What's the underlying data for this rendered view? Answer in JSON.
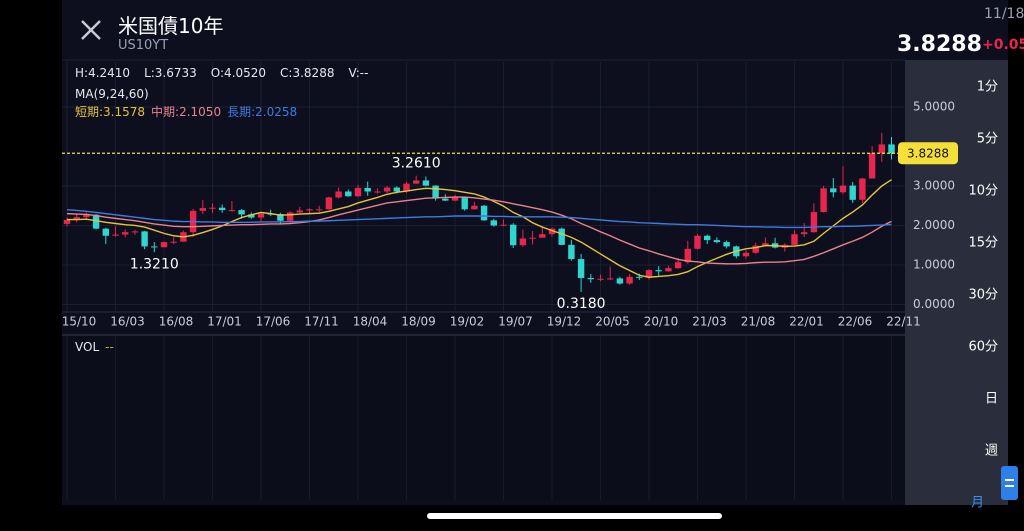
{
  "header": {
    "title": "米国債10年",
    "symbol": "US10YT",
    "date": "11/18",
    "price": "3.8288",
    "change": "+0.05"
  },
  "ohlc_bar": [
    "H:4.2410",
    "L:3.6733",
    "O:4.0520",
    "C:3.8288",
    "V:--"
  ],
  "ma_legend": {
    "title": "MA(9,24,60)",
    "items": [
      "短期:3.1578",
      "中期:2.1050",
      "長期:2.0258"
    ]
  },
  "vol_panel": {
    "label": "VOL",
    "value": "--"
  },
  "timeframes": {
    "items": [
      "1分",
      "5分",
      "10分",
      "15分",
      "30分",
      "60分",
      "日",
      "週",
      "月"
    ],
    "selected": "月"
  },
  "chart_data": {
    "type": "candlestick",
    "categories": [
      "15/10",
      null,
      null,
      null,
      null,
      "16/03",
      null,
      null,
      null,
      null,
      "16/08",
      null,
      null,
      null,
      null,
      "17/01",
      null,
      null,
      null,
      null,
      "17/06",
      null,
      null,
      null,
      null,
      "17/11",
      null,
      null,
      null,
      null,
      "18/04",
      null,
      null,
      null,
      null,
      "18/09",
      null,
      null,
      null,
      null,
      "19/02",
      null,
      null,
      null,
      null,
      "19/07",
      null,
      null,
      null,
      null,
      "19/12",
      null,
      null,
      null,
      null,
      "20/05",
      null,
      null,
      null,
      null,
      "20/10",
      null,
      null,
      null,
      null,
      "21/03",
      null,
      null,
      null,
      null,
      "21/08",
      null,
      null,
      null,
      null,
      "22/01",
      null,
      null,
      null,
      null,
      "22/06",
      null,
      null,
      null,
      null,
      "22/11"
    ],
    "open": [
      2.04,
      2.14,
      2.21,
      2.27,
      1.92,
      1.74,
      1.77,
      1.83,
      1.85,
      1.47,
      1.45,
      1.58,
      1.59,
      1.83,
      2.37,
      2.44,
      2.45,
      2.39,
      2.39,
      2.28,
      2.2,
      2.3,
      2.29,
      2.12,
      2.33,
      2.38,
      2.41,
      2.41,
      2.71,
      2.86,
      2.74,
      2.95,
      2.86,
      2.86,
      2.96,
      2.86,
      3.06,
      3.14,
      3.01,
      2.68,
      2.63,
      2.72,
      2.41,
      2.5,
      2.13,
      2.0,
      2.02,
      1.5,
      1.67,
      1.69,
      1.78,
      1.92,
      1.51,
      1.15,
      0.67,
      0.64,
      0.65,
      0.66,
      0.53,
      0.7,
      0.68,
      0.87,
      0.84,
      0.92,
      1.07,
      1.41,
      1.74,
      1.63,
      1.58,
      1.47,
      1.22,
      1.31,
      1.49,
      1.55,
      1.44,
      1.51,
      1.78,
      1.83,
      2.34,
      2.94,
      2.84,
      3.01,
      2.65,
      3.19,
      3.83,
      4.052
    ],
    "high": [
      2.2,
      2.29,
      2.33,
      2.29,
      1.94,
      1.98,
      1.9,
      1.89,
      1.86,
      1.58,
      1.59,
      1.7,
      1.87,
      2.42,
      2.64,
      2.56,
      2.53,
      2.62,
      2.42,
      2.33,
      2.32,
      2.4,
      2.32,
      2.36,
      2.47,
      2.43,
      2.5,
      2.73,
      2.96,
      2.91,
      3.03,
      3.11,
      2.94,
      3.0,
      2.99,
      3.1,
      3.261,
      3.24,
      3.02,
      2.79,
      2.78,
      2.73,
      2.6,
      2.52,
      2.17,
      2.15,
      2.06,
      1.9,
      1.86,
      1.97,
      1.95,
      1.95,
      1.64,
      1.28,
      0.77,
      0.76,
      0.96,
      0.7,
      0.77,
      0.78,
      0.89,
      0.97,
      0.98,
      1.18,
      1.61,
      1.78,
      1.77,
      1.7,
      1.62,
      1.49,
      1.38,
      1.56,
      1.7,
      1.69,
      1.55,
      1.88,
      2.06,
      2.56,
      3.0,
      3.2,
      3.5,
      3.1,
      3.2,
      4.01,
      4.34,
      4.241
    ],
    "low": [
      1.98,
      2.08,
      2.16,
      1.9,
      1.53,
      1.72,
      1.7,
      1.76,
      1.4,
      1.321,
      1.44,
      1.53,
      1.59,
      1.71,
      2.29,
      2.32,
      2.32,
      2.35,
      2.17,
      2.17,
      2.1,
      2.24,
      2.03,
      2.04,
      2.31,
      2.31,
      2.33,
      2.4,
      2.68,
      2.73,
      2.72,
      2.75,
      2.81,
      2.82,
      2.81,
      2.82,
      3.05,
      2.99,
      2.63,
      2.62,
      2.61,
      2.37,
      2.4,
      2.12,
      1.97,
      1.98,
      1.43,
      1.46,
      1.52,
      1.71,
      1.72,
      1.5,
      1.11,
      0.318,
      0.55,
      0.59,
      0.62,
      0.5,
      0.5,
      0.62,
      0.63,
      0.73,
      0.83,
      0.9,
      1.03,
      1.39,
      1.53,
      1.55,
      1.42,
      1.17,
      1.16,
      1.28,
      1.48,
      1.42,
      1.34,
      1.5,
      1.71,
      1.82,
      2.33,
      2.71,
      2.79,
      2.57,
      2.57,
      3.19,
      3.61,
      3.6733
    ],
    "close": [
      2.14,
      2.21,
      2.27,
      1.92,
      1.74,
      1.77,
      1.83,
      1.85,
      1.47,
      1.45,
      1.58,
      1.59,
      1.83,
      2.37,
      2.44,
      2.45,
      2.39,
      2.39,
      2.28,
      2.2,
      2.3,
      2.29,
      2.12,
      2.33,
      2.38,
      2.41,
      2.41,
      2.71,
      2.86,
      2.74,
      2.95,
      2.86,
      2.86,
      2.96,
      2.86,
      3.06,
      3.14,
      3.01,
      2.68,
      2.63,
      2.72,
      2.41,
      2.5,
      2.13,
      2.0,
      2.02,
      1.5,
      1.67,
      1.69,
      1.78,
      1.92,
      1.51,
      1.15,
      0.67,
      0.64,
      0.65,
      0.66,
      0.53,
      0.7,
      0.68,
      0.87,
      0.84,
      0.92,
      1.07,
      1.41,
      1.74,
      1.63,
      1.58,
      1.47,
      1.22,
      1.31,
      1.49,
      1.55,
      1.44,
      1.51,
      1.78,
      1.83,
      2.34,
      2.94,
      2.84,
      3.01,
      2.65,
      3.19,
      3.83,
      4.052,
      3.8288
    ],
    "up_color": "#e8254d",
    "down_color": "#2fd6cf",
    "lines": [
      {
        "color": "#e5c33a",
        "values": [
          2.15,
          2.15,
          2.16,
          2.12,
          2.08,
          2.05,
          2.02,
          2.0,
          1.96,
          1.88,
          1.8,
          1.74,
          1.71,
          1.75,
          1.82,
          1.9,
          1.99,
          2.1,
          2.2,
          2.27,
          2.33,
          2.3,
          2.26,
          2.27,
          2.29,
          2.3,
          2.31,
          2.36,
          2.42,
          2.48,
          2.57,
          2.64,
          2.71,
          2.79,
          2.84,
          2.87,
          2.91,
          2.94,
          2.93,
          2.91,
          2.88,
          2.84,
          2.8,
          2.72,
          2.61,
          2.49,
          2.33,
          2.22,
          2.07,
          1.96,
          1.87,
          1.79,
          1.7,
          1.58,
          1.43,
          1.28,
          1.13,
          0.98,
          0.86,
          0.74,
          0.69,
          0.71,
          0.73,
          0.76,
          0.83,
          0.96,
          1.07,
          1.17,
          1.27,
          1.35,
          1.41,
          1.44,
          1.49,
          1.49,
          1.47,
          1.48,
          1.51,
          1.6,
          1.8,
          1.99,
          2.18,
          2.34,
          2.52,
          2.77,
          3.0,
          3.1578
        ]
      },
      {
        "color": "#e8828c",
        "values": [
          2.3,
          2.29,
          2.28,
          2.25,
          2.21,
          2.18,
          2.15,
          2.12,
          2.08,
          2.04,
          2.01,
          1.98,
          1.97,
          1.97,
          1.98,
          1.99,
          2.0,
          2.01,
          2.02,
          2.02,
          2.03,
          2.04,
          2.04,
          2.05,
          2.07,
          2.1,
          2.14,
          2.2,
          2.27,
          2.33,
          2.39,
          2.45,
          2.51,
          2.57,
          2.6,
          2.63,
          2.66,
          2.69,
          2.7,
          2.71,
          2.72,
          2.72,
          2.7,
          2.67,
          2.64,
          2.6,
          2.55,
          2.5,
          2.45,
          2.4,
          2.34,
          2.26,
          2.17,
          2.05,
          1.95,
          1.84,
          1.74,
          1.63,
          1.53,
          1.43,
          1.36,
          1.28,
          1.21,
          1.14,
          1.1,
          1.08,
          1.05,
          1.04,
          1.03,
          1.03,
          1.04,
          1.06,
          1.07,
          1.07,
          1.08,
          1.11,
          1.14,
          1.22,
          1.31,
          1.41,
          1.51,
          1.6,
          1.7,
          1.83,
          1.98,
          2.105
        ]
      },
      {
        "color": "#3d7be0",
        "values": [
          2.4,
          2.38,
          2.36,
          2.33,
          2.3,
          2.27,
          2.24,
          2.21,
          2.18,
          2.15,
          2.13,
          2.11,
          2.1,
          2.1,
          2.09,
          2.09,
          2.08,
          2.08,
          2.08,
          2.08,
          2.09,
          2.09,
          2.09,
          2.1,
          2.1,
          2.11,
          2.11,
          2.12,
          2.13,
          2.14,
          2.15,
          2.16,
          2.17,
          2.18,
          2.19,
          2.2,
          2.21,
          2.22,
          2.22,
          2.23,
          2.24,
          2.24,
          2.24,
          2.24,
          2.23,
          2.23,
          2.22,
          2.22,
          2.22,
          2.22,
          2.22,
          2.21,
          2.2,
          2.18,
          2.16,
          2.14,
          2.12,
          2.1,
          2.09,
          2.07,
          2.06,
          2.05,
          2.04,
          2.03,
          2.02,
          2.02,
          2.01,
          2.0,
          1.99,
          1.98,
          1.97,
          1.97,
          1.96,
          1.96,
          1.95,
          1.95,
          1.95,
          1.96,
          1.97,
          1.97,
          1.98,
          1.98,
          1.99,
          2.0,
          2.01,
          2.0258
        ]
      }
    ],
    "ylim": [
      -0.19,
      5.48
    ],
    "yticks": [
      {
        "value": 5,
        "label": "5.0000"
      },
      {
        "value": 3,
        "label": "3.0000"
      },
      {
        "value": 2,
        "label": "2.0000"
      },
      {
        "value": 1,
        "label": "1.0000"
      },
      {
        "value": 0,
        "label": "0.0000"
      }
    ],
    "grid": true,
    "last_price": {
      "value": 3.8288,
      "label": "3.8288",
      "color": "#f5e03a"
    },
    "annotations": [
      {
        "value": 3.261,
        "label": "3.2610"
      },
      {
        "value": 1.321,
        "label": "1.3210"
      },
      {
        "value": 0.318,
        "label": "0.3180"
      }
    ]
  }
}
